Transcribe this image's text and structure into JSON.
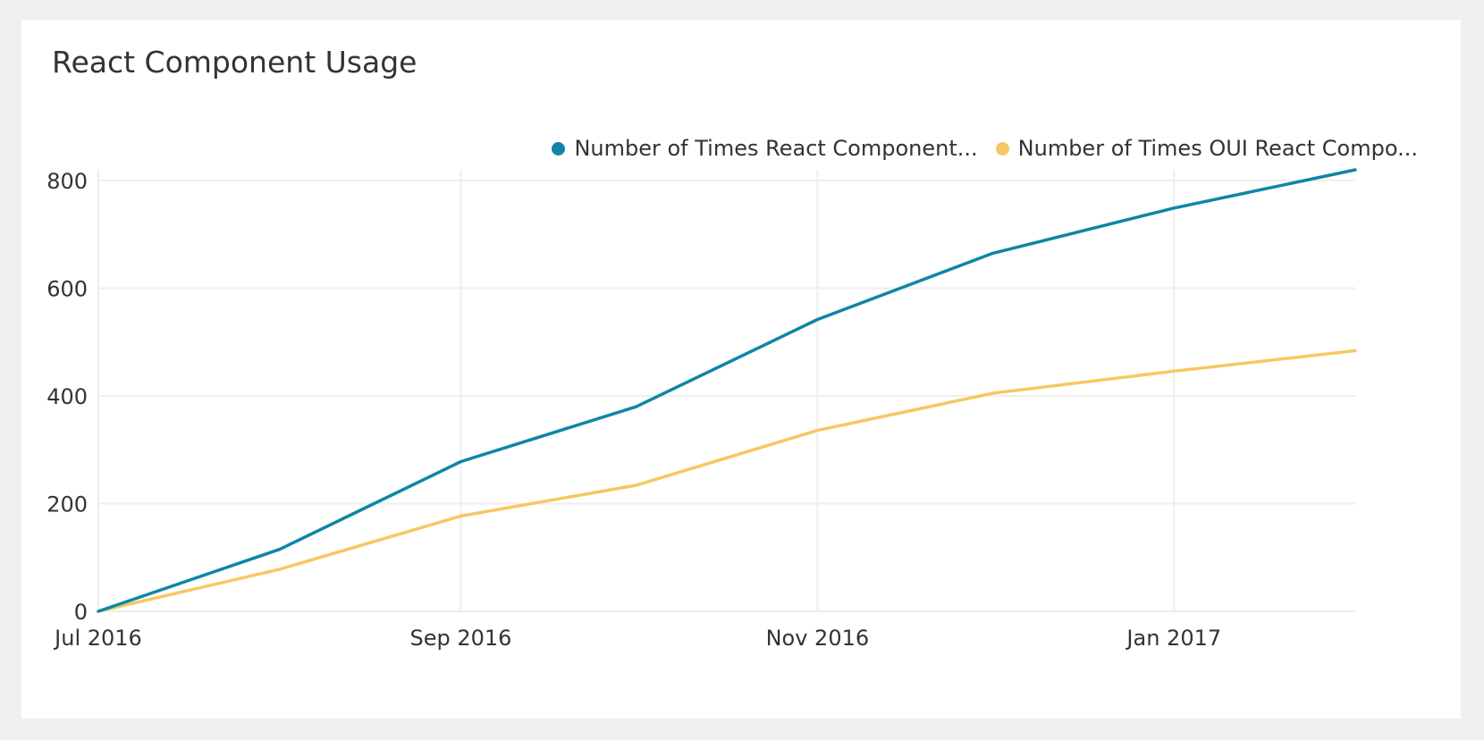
{
  "card": {
    "title": "React Component Usage"
  },
  "colors": {
    "page_background": "#efefef",
    "card_background": "#ffffff",
    "grid": "#eeeeee"
  },
  "chart_data": {
    "type": "line",
    "title": "React Component Usage",
    "xlabel": "",
    "ylabel": "",
    "x": [
      "2016-07-01",
      "2016-08-01",
      "2016-09-01",
      "2016-10-01",
      "2016-11-01",
      "2016-12-01",
      "2017-01-01",
      "2017-02-01"
    ],
    "x_ticks": [
      {
        "value": "2016-07-01",
        "label": "Jul 2016"
      },
      {
        "value": "2016-09-01",
        "label": "Sep 2016"
      },
      {
        "value": "2016-11-01",
        "label": "Nov 2016"
      },
      {
        "value": "2017-01-01",
        "label": "Jan 2017"
      }
    ],
    "y_ticks": [
      0,
      200,
      400,
      600,
      800
    ],
    "ylim": [
      0,
      820
    ],
    "grid": true,
    "legend_position": "top-right",
    "series": [
      {
        "name": "Number of Times React Component...",
        "color": "#0e86a6",
        "values": [
          0,
          115,
          278,
          380,
          542,
          665,
          749,
          820
        ]
      },
      {
        "name": "Number of Times OUI React Compo...",
        "color": "#f6c763",
        "values": [
          0,
          78,
          177,
          234,
          336,
          405,
          446,
          484
        ]
      }
    ]
  }
}
